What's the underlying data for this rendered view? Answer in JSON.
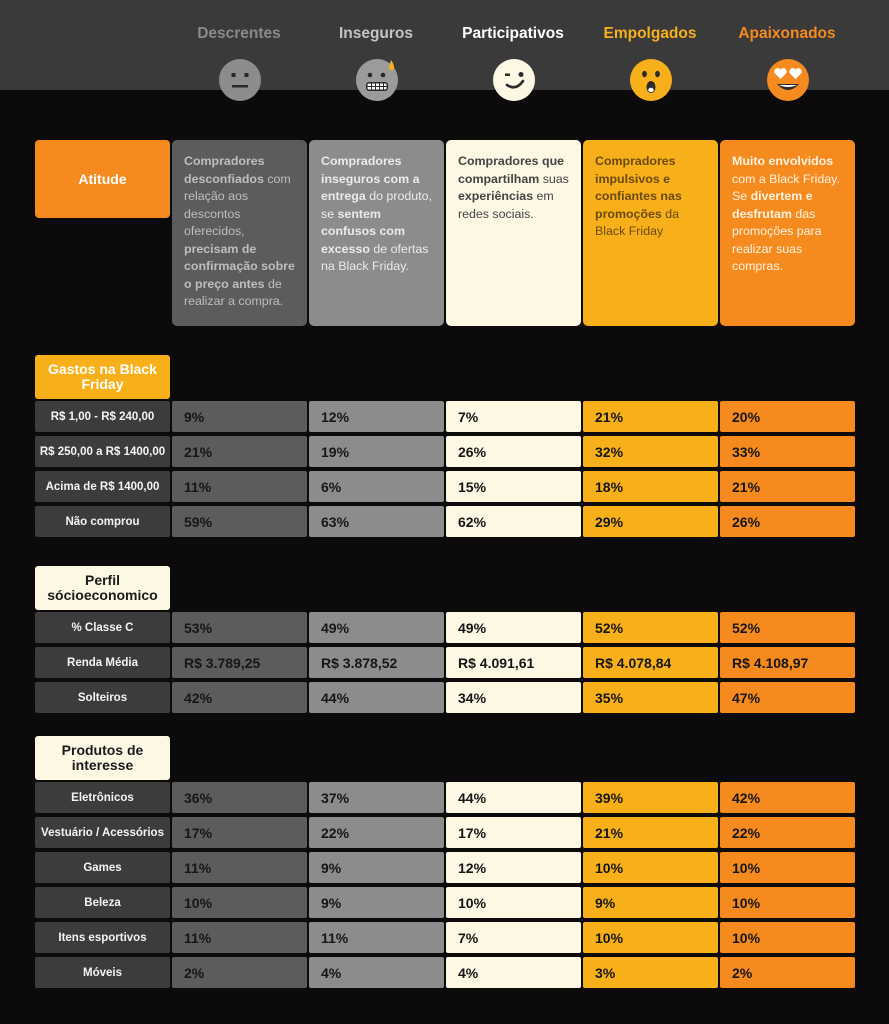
{
  "profiles": [
    {
      "name": "Descrentes",
      "color": "#8a8a8a",
      "face_color": "#8c8c8c",
      "face_icon": "neutral-face-icon",
      "description": [
        {
          "t": "Compradores desconfiados",
          "b": true
        },
        {
          "t": " com relação aos descontos oferecidos, ",
          "b": false
        },
        {
          "t": "precisam de confirmação sobre o preço antes",
          "b": true
        },
        {
          "t": " de realizar a compra.",
          "b": false
        }
      ]
    },
    {
      "name": "Inseguros",
      "color": "#c4c4c4",
      "face_color": "#9b9b9b",
      "face_icon": "grimacing-sweat-face-icon",
      "description": [
        {
          "t": "Compradores inseguros com a ",
          "b": true
        },
        {
          "t": "entrega",
          "b": true
        },
        {
          "t": " do produto, se ",
          "b": false
        },
        {
          "t": "sentem confusos com excesso",
          "b": true
        },
        {
          "t": " de ofertas na Black Friday.",
          "b": false
        }
      ]
    },
    {
      "name": "Participativos",
      "color": "#ffffff",
      "face_color": "#fdf8e4",
      "face_icon": "winking-face-icon",
      "description": [
        {
          "t": "Compradores que compartilham",
          "b": true
        },
        {
          "t": " suas ",
          "b": false
        },
        {
          "t": "experiências",
          "b": true
        },
        {
          "t": " em redes sociais.",
          "b": false
        }
      ]
    },
    {
      "name": "Empolgados",
      "color": "#f8b01a",
      "face_color": "#f8b01a",
      "face_icon": "surprised-face-icon",
      "description": [
        {
          "t": "Compradores impulsivos e confiantes nas promoções",
          "b": true
        },
        {
          "t": " da Black Friday",
          "b": false
        }
      ]
    },
    {
      "name": "Apaixonados",
      "color": "#f58a1f",
      "face_color": "#f58a1f",
      "face_icon": "heart-eyes-face-icon",
      "description": [
        {
          "t": "Muito envolvidos",
          "b": true
        },
        {
          "t": " com a Black Friday. Se ",
          "b": false
        },
        {
          "t": "divertem e desfrutam",
          "b": true
        },
        {
          "t": " das promoções para realizar suas compras.",
          "b": false
        }
      ]
    }
  ],
  "attitude_label": "Atitude",
  "sections": [
    {
      "title": "Gastos na Black Friday",
      "rows": [
        {
          "label": "R$ 1,00 - R$ 240,00",
          "values": [
            "9%",
            "12%",
            "7%",
            "21%",
            "20%"
          ]
        },
        {
          "label": "R$ 250,00 a R$ 1400,00",
          "values": [
            "21%",
            "19%",
            "26%",
            "32%",
            "33%"
          ]
        },
        {
          "label": "Acima de R$ 1400,00",
          "values": [
            "11%",
            "6%",
            "15%",
            "18%",
            "21%"
          ]
        },
        {
          "label": "Não comprou",
          "values": [
            "59%",
            "63%",
            "62%",
            "29%",
            "26%"
          ]
        }
      ]
    },
    {
      "title": "Perfil sócioeconomico",
      "rows": [
        {
          "label": "% Classe C",
          "values": [
            "53%",
            "49%",
            "49%",
            "52%",
            "52%"
          ]
        },
        {
          "label": "Renda Média",
          "values": [
            "R$ 3.789,25",
            "R$ 3.878,52",
            "R$ 4.091,61",
            "R$ 4.078,84",
            "R$ 4.108,97"
          ]
        },
        {
          "label": "Solteiros",
          "values": [
            "42%",
            "44%",
            "34%",
            "35%",
            "47%"
          ]
        }
      ]
    },
    {
      "title": "Produtos de interesse",
      "rows": [
        {
          "label": "Eletrônicos",
          "values": [
            "36%",
            "37%",
            "44%",
            "39%",
            "42%"
          ]
        },
        {
          "label": "Vestuário / Acessórios",
          "values": [
            "17%",
            "22%",
            "17%",
            "21%",
            "22%"
          ]
        },
        {
          "label": "Games",
          "values": [
            "11%",
            "9%",
            "12%",
            "10%",
            "10%"
          ]
        },
        {
          "label": "Beleza",
          "values": [
            "10%",
            "9%",
            "10%",
            "9%",
            "10%"
          ]
        },
        {
          "label": "Itens esportivos",
          "values": [
            "11%",
            "11%",
            "7%",
            "10%",
            "10%"
          ]
        },
        {
          "label": "Móveis",
          "values": [
            "2%",
            "4%",
            "4%",
            "3%",
            "2%"
          ]
        }
      ]
    }
  ]
}
